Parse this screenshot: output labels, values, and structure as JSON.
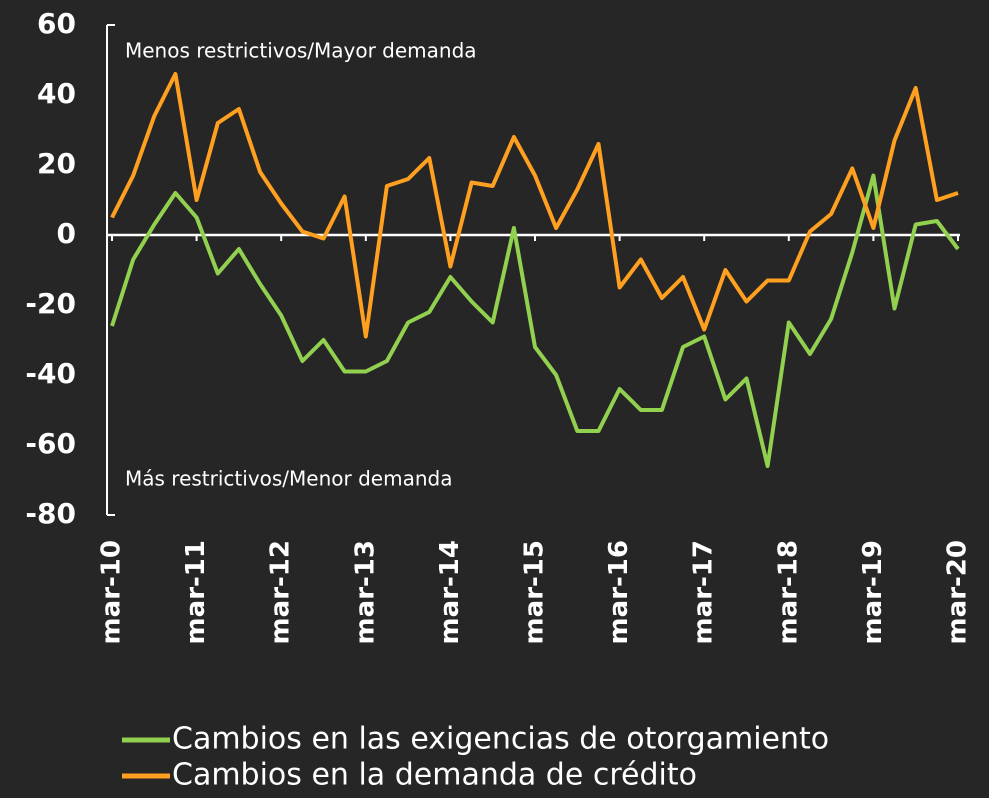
{
  "chart_data": {
    "type": "line",
    "annotations": [
      "Menos restrictivos/Mayor demanda",
      "Más restrictivos/Menor demanda"
    ],
    "categories": [
      "mar-10",
      null,
      null,
      null,
      "mar-11",
      null,
      null,
      null,
      "mar-12",
      null,
      null,
      null,
      "mar-13",
      null,
      null,
      null,
      "mar-14",
      null,
      null,
      null,
      "mar-15",
      null,
      null,
      null,
      "mar-16",
      null,
      null,
      null,
      "mar-17",
      null,
      null,
      null,
      "mar-18",
      null,
      null,
      null,
      "mar-19",
      null,
      null,
      null,
      "mar-20"
    ],
    "series": [
      {
        "name": "Cambios en las exigencias de otorgamiento",
        "color": "#92d050",
        "values": [
          -26,
          -7,
          3,
          12,
          5,
          -11,
          -4,
          -14,
          -23,
          -36,
          -30,
          -39,
          -39,
          -36,
          -25,
          -22,
          -12,
          -19,
          -25,
          2,
          -32,
          -40,
          -56,
          -56,
          -44,
          -50,
          -50,
          -32,
          -29,
          -47,
          -41,
          -66,
          -25,
          -34,
          -24,
          -5,
          17,
          -21,
          3,
          4,
          -4
        ]
      },
      {
        "name": "Cambios en la demanda de crédito",
        "color": "#ffa020",
        "values": [
          5,
          17,
          34,
          46,
          10,
          32,
          36,
          18,
          9,
          1,
          -1,
          11,
          -29,
          14,
          16,
          22,
          -9,
          15,
          14,
          28,
          17,
          2,
          13,
          26,
          -15,
          -7,
          -18,
          -12,
          -27,
          -10,
          -19,
          -13,
          -13,
          1,
          6,
          19,
          2,
          27,
          42,
          10,
          12
        ]
      }
    ],
    "ylim": [
      -80,
      60
    ],
    "yticks": [
      -80,
      -60,
      -40,
      -20,
      0,
      20,
      40,
      60
    ],
    "grid": false,
    "legend": "bottom"
  }
}
